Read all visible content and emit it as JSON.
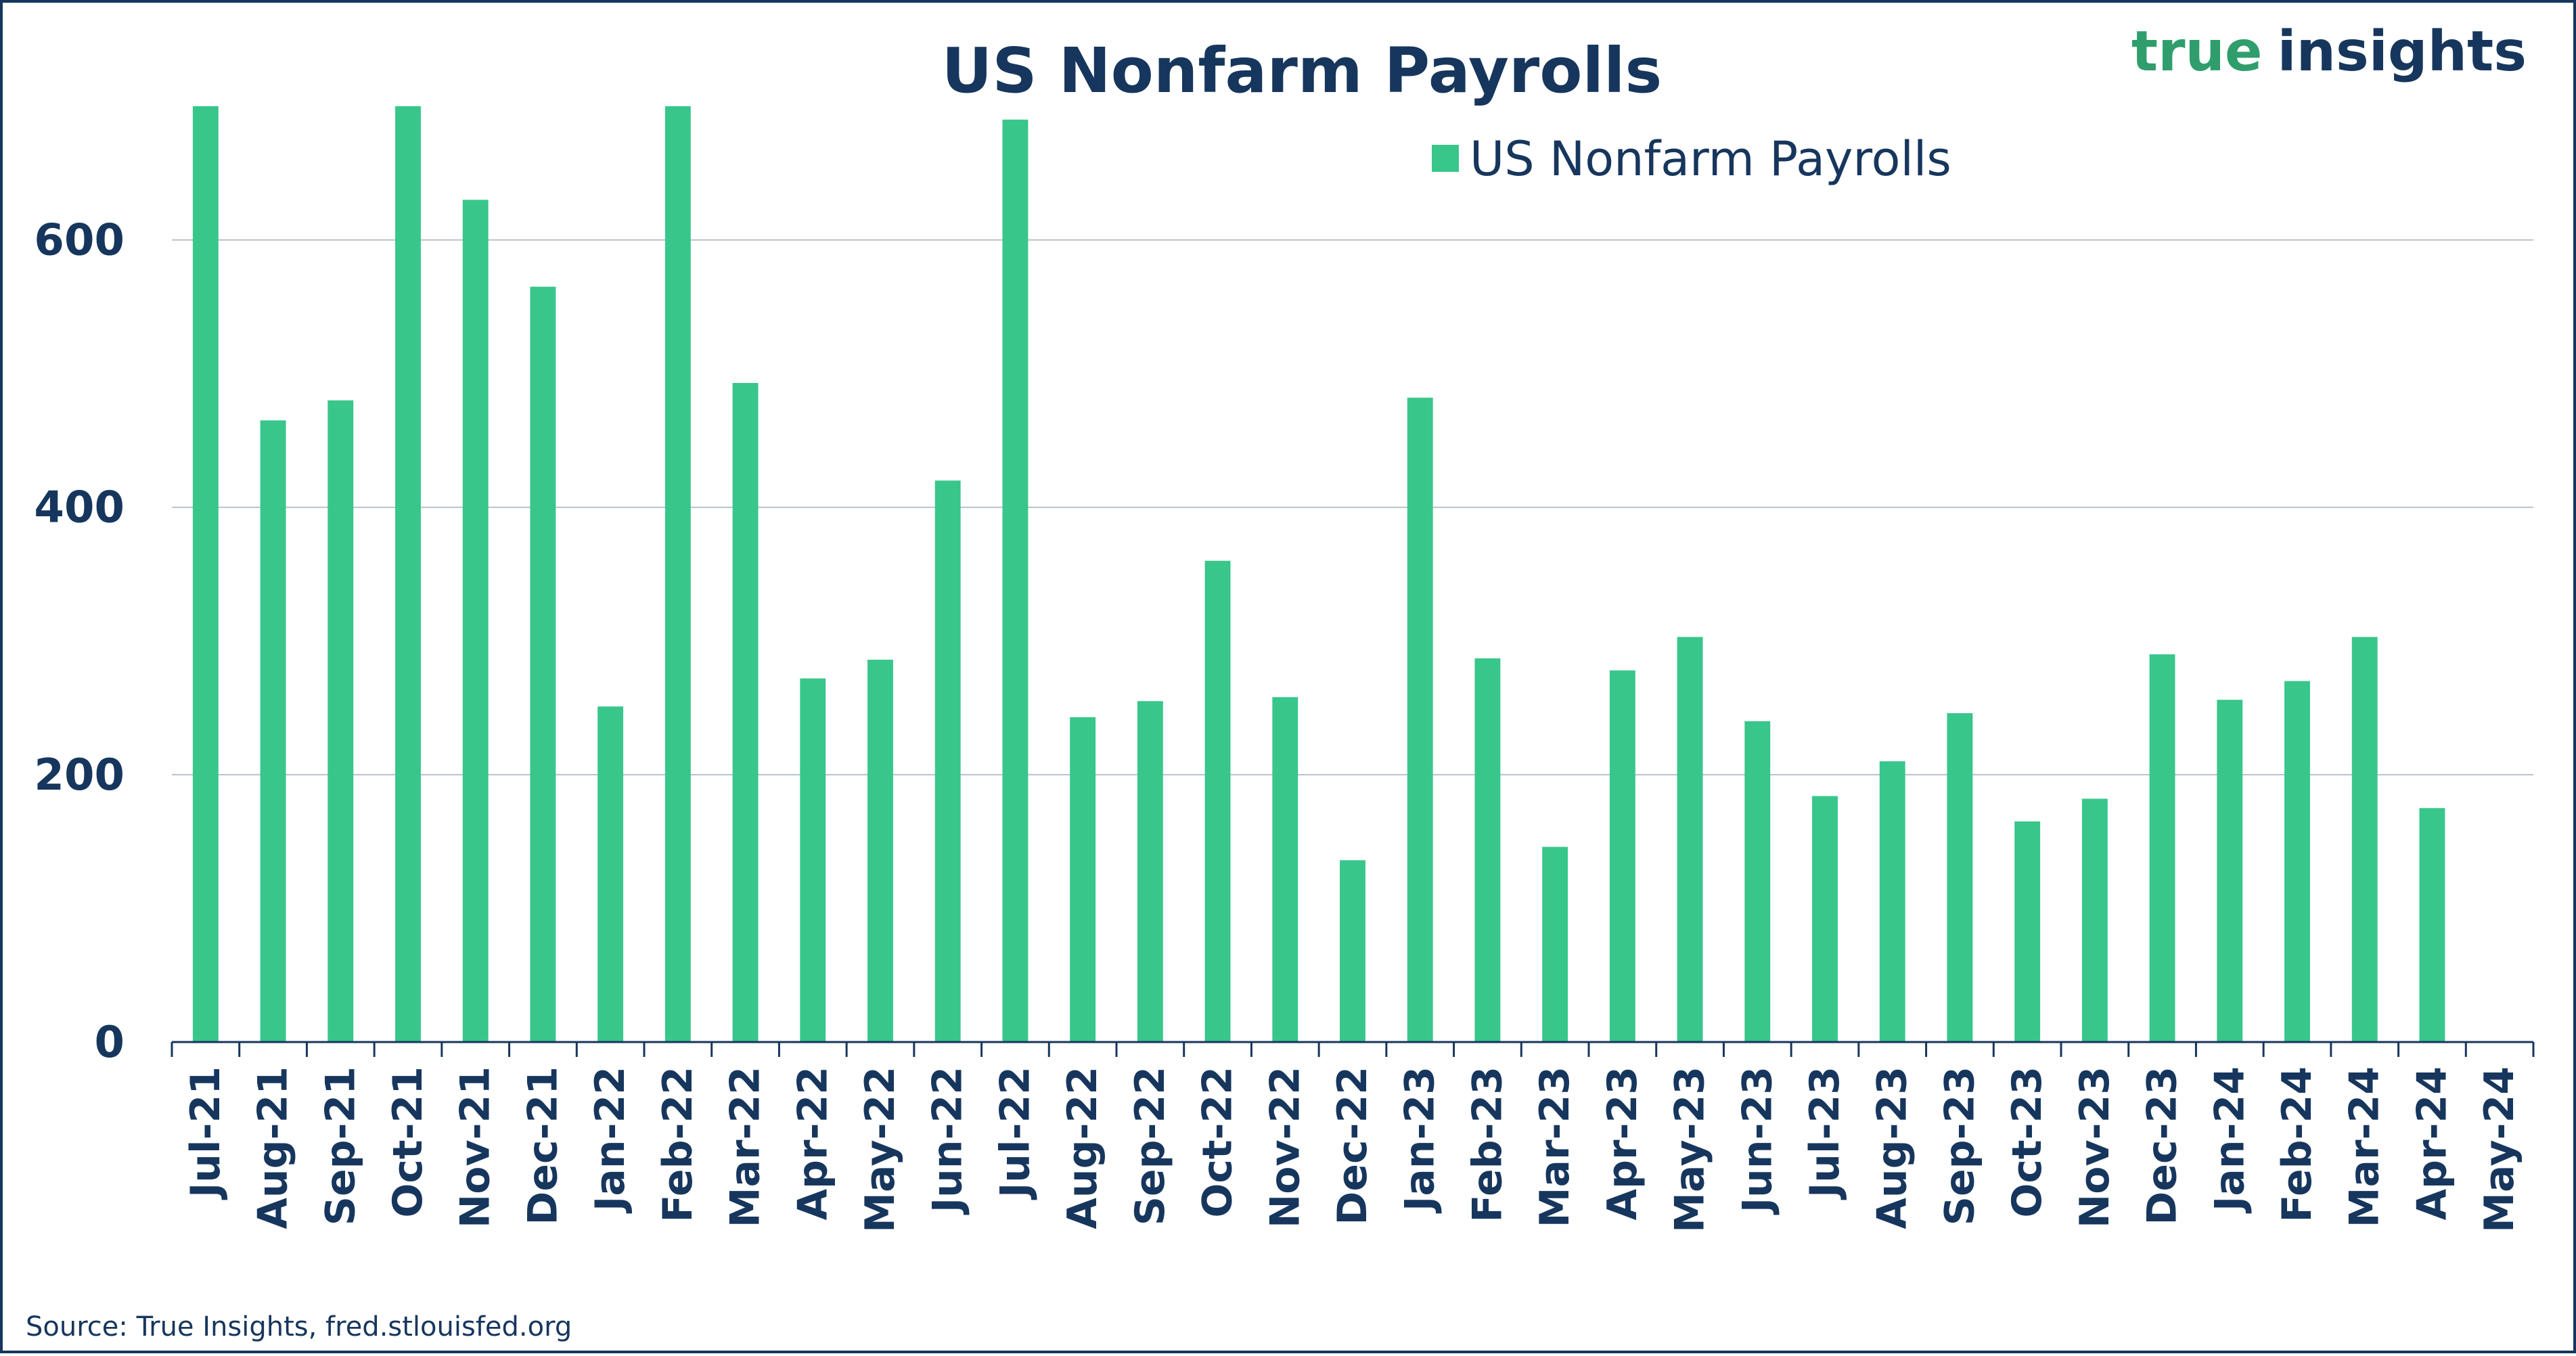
{
  "chart_data": {
    "type": "bar",
    "title": "US Nonfarm Payrolls",
    "legend": [
      "US Nonfarm Payrolls"
    ],
    "legend_position": "top-center",
    "brand": {
      "part1": "true",
      "part2": "insights"
    },
    "source": "Source: True Insights, fred.stlouisfed.org",
    "xlabel": "",
    "ylabel": "",
    "ylim": [
      0,
      700
    ],
    "yticks": [
      0,
      200,
      400,
      600
    ],
    "grid": true,
    "categories": [
      "Jul-21",
      "Aug-21",
      "Sep-21",
      "Oct-21",
      "Nov-21",
      "Dec-21",
      "Jan-22",
      "Feb-22",
      "Mar-22",
      "Apr-22",
      "May-22",
      "Jun-22",
      "Jul-22",
      "Aug-22",
      "Sep-22",
      "Oct-22",
      "Nov-22",
      "Dec-22",
      "Jan-23",
      "Feb-23",
      "Mar-23",
      "Apr-23",
      "May-23",
      "Jun-23",
      "Jul-23",
      "Aug-23",
      "Sep-23",
      "Oct-23",
      "Nov-23",
      "Dec-23",
      "Jan-24",
      "Feb-24",
      "Mar-24",
      "Apr-24",
      "May-24"
    ],
    "series": [
      {
        "name": "US Nonfarm Payrolls",
        "color": "#38c68b",
        "values": [
          700,
          465,
          480,
          700,
          630,
          565,
          251,
          700,
          493,
          272,
          286,
          420,
          690,
          243,
          255,
          360,
          258,
          136,
          482,
          287,
          146,
          278,
          303,
          240,
          184,
          210,
          246,
          165,
          182,
          290,
          256,
          270,
          303,
          175,
          null
        ]
      }
    ]
  },
  "colors": {
    "bar": "#38c68b",
    "text": "#17365d",
    "grid": "#b8c2cc",
    "axis": "#17365d",
    "brand_green": "#2f9e6c"
  }
}
